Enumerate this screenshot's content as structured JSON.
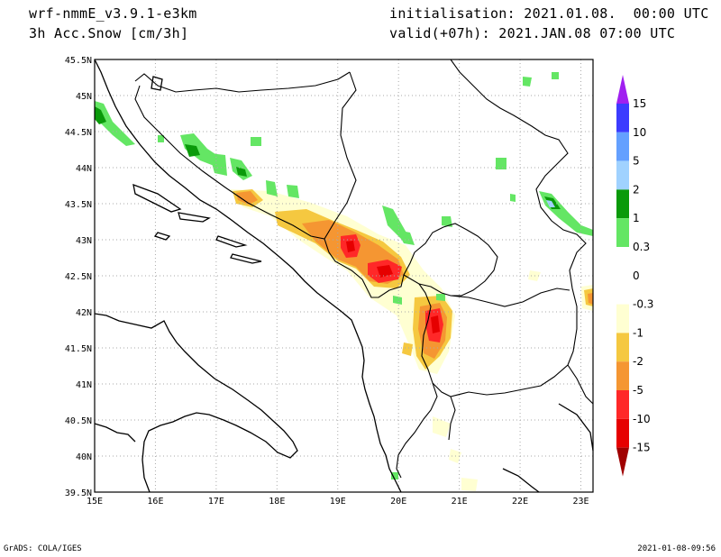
{
  "header": {
    "model": "wrf-nmmE_v3.9.1-e3km",
    "variable": "3h Acc.Snow [cm/3h]",
    "init": "initialisation: 2021.01.08.  00:00 UTC",
    "valid": "valid(+07h): 2021.JAN.08 07:00 UTC"
  },
  "footer": {
    "credit": "GrADS: COLA/IGES",
    "timestamp": "2021-01-08-09:56"
  },
  "axes": {
    "lon_labels": [
      "15E",
      "16E",
      "17E",
      "18E",
      "19E",
      "20E",
      "21E",
      "22E",
      "23E"
    ],
    "lat_labels": [
      "39.5N",
      "40N",
      "40.5N",
      "41N",
      "41.5N",
      "42N",
      "42.5N",
      "43N",
      "43.5N",
      "44N",
      "44.5N",
      "45N",
      "45.5N"
    ],
    "lon_range": [
      15,
      23.2
    ],
    "lat_range": [
      39.5,
      45.5
    ]
  },
  "colorbar": {
    "labels": [
      "15",
      "10",
      "5",
      "2",
      "1",
      "0.3",
      "0",
      "-0.3",
      "-1",
      "-2",
      "-5",
      "-10",
      "-15"
    ],
    "colors": {
      "c15": "#a020f0",
      "c10": "#3c3cff",
      "c5": "#64a0ff",
      "c2": "#a0d2ff",
      "c1": "#0a9a0a",
      "c03": "#64e664",
      "c0": "#ffffff",
      "cm03": "#ffffd2",
      "cm1": "#f5c840",
      "cm2": "#f59632",
      "cm5": "#ff2828",
      "cm10": "#e60000",
      "cm15": "#a00000"
    }
  },
  "colors": {
    "coast": "#000000",
    "grid": "#aaaaaa",
    "frame": "#000000"
  }
}
